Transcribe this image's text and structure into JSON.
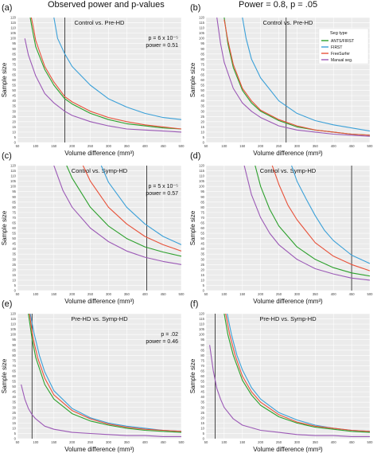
{
  "figure": {
    "col_titles": [
      "Observed power and p-values",
      "Power = 0.8, p = .05"
    ],
    "xlabel": "Volume difference (mm³)",
    "ylabel": "Sample size",
    "xticks": [
      50,
      100,
      150,
      200,
      250,
      300,
      350,
      400,
      450,
      500
    ],
    "yticks": [
      0,
      5,
      10,
      15,
      20,
      25,
      30,
      35,
      40,
      45,
      50,
      55,
      60,
      65,
      70,
      75,
      80,
      85,
      90,
      95,
      100,
      105,
      110,
      115,
      120
    ],
    "legend_title": "Seg type",
    "colors": {
      "ANTS/FIRST": "#2ca02c",
      "FIRST": "#3ba0d8",
      "FreeSurfer": "#e8523a",
      "Manual seg.": "#9b59b6",
      "panel_bg": "#ebebeb",
      "grid": "#ffffff",
      "vline": "#333333"
    }
  },
  "chart_data": [
    {
      "type": "line",
      "panel_label": "(a)",
      "title": "Control vs. Pre-HD",
      "annotation": [
        "p = 6 x 10⁻⁵",
        "power = 0.51"
      ],
      "xlim": [
        50,
        500
      ],
      "ylim": [
        0,
        120
      ],
      "vline_x": 180,
      "legend": false,
      "series": [
        {
          "name": "ANTS/FIRST",
          "x": [
            85,
            90,
            100,
            125,
            150,
            180,
            200,
            250,
            300,
            350,
            400,
            450,
            500
          ],
          "y": [
            120,
            110,
            92,
            70,
            55,
            42,
            37,
            28,
            22,
            18,
            16,
            14,
            13
          ]
        },
        {
          "name": "FIRST",
          "x": [
            150,
            160,
            180,
            200,
            250,
            300,
            350,
            400,
            450,
            500
          ],
          "y": [
            120,
            100,
            85,
            73,
            55,
            42,
            34,
            28,
            24,
            22
          ]
        },
        {
          "name": "FreeSurfer",
          "x": [
            88,
            95,
            100,
            125,
            150,
            180,
            200,
            250,
            300,
            350,
            400,
            450,
            500
          ],
          "y": [
            120,
            108,
            98,
            73,
            58,
            44,
            39,
            30,
            24,
            20,
            17,
            15,
            13
          ]
        },
        {
          "name": "Manual seg.",
          "x": [
            70,
            80,
            100,
            125,
            150,
            180,
            200,
            250,
            300,
            350,
            400,
            450,
            500
          ],
          "y": [
            100,
            84,
            64,
            47,
            38,
            30,
            26,
            20,
            16,
            13,
            12,
            11,
            10
          ]
        }
      ]
    },
    {
      "type": "line",
      "panel_label": "(b)",
      "title": "Control vs. Pre-HD",
      "annotation": [],
      "xlim": [
        50,
        500
      ],
      "ylim": [
        0,
        120
      ],
      "vline_x": 270,
      "legend": true,
      "series": [
        {
          "name": "ANTS/FIRST",
          "x": [
            100,
            110,
            125,
            150,
            175,
            200,
            250,
            300,
            350,
            400,
            450,
            500
          ],
          "y": [
            120,
            95,
            72,
            50,
            38,
            30,
            21,
            15,
            12,
            10,
            8,
            7
          ]
        },
        {
          "name": "FIRST",
          "x": [
            150,
            160,
            175,
            200,
            250,
            300,
            350,
            400,
            450,
            500
          ],
          "y": [
            120,
            100,
            80,
            62,
            40,
            28,
            21,
            17,
            14,
            11
          ]
        },
        {
          "name": "FreeSurfer",
          "x": [
            100,
            110,
            125,
            150,
            175,
            200,
            250,
            300,
            350,
            400,
            450,
            500
          ],
          "y": [
            118,
            98,
            75,
            52,
            40,
            31,
            22,
            16,
            12,
            10,
            8,
            7
          ]
        },
        {
          "name": "Manual seg.",
          "x": [
            80,
            90,
            100,
            125,
            150,
            175,
            200,
            250,
            300,
            350,
            400,
            450,
            500
          ],
          "y": [
            120,
            95,
            77,
            52,
            38,
            30,
            24,
            16,
            12,
            10,
            8,
            7,
            6
          ]
        }
      ]
    },
    {
      "type": "line",
      "panel_label": "(c)",
      "title": "Control vs. Symp-HD",
      "annotation": [
        "p = 5 x 10⁻⁵",
        "power = 0.57"
      ],
      "xlim": [
        50,
        500
      ],
      "ylim": [
        0,
        120
      ],
      "vline_x": 405,
      "legend": false,
      "series": [
        {
          "name": "ANTS/FIRST",
          "x": [
            185,
            200,
            250,
            300,
            350,
            400,
            450,
            500
          ],
          "y": [
            120,
            108,
            80,
            62,
            50,
            42,
            37,
            33
          ]
        },
        {
          "name": "FIRST",
          "x": [
            280,
            300,
            350,
            400,
            450,
            500
          ],
          "y": [
            120,
            104,
            80,
            64,
            52,
            44
          ]
        },
        {
          "name": "FreeSurfer",
          "x": [
            230,
            250,
            300,
            350,
            400,
            450,
            500
          ],
          "y": [
            120,
            105,
            80,
            64,
            52,
            44,
            38
          ]
        },
        {
          "name": "Manual seg.",
          "x": [
            150,
            175,
            200,
            250,
            300,
            350,
            400,
            450,
            500
          ],
          "y": [
            120,
            96,
            80,
            60,
            47,
            38,
            32,
            28,
            25
          ]
        }
      ]
    },
    {
      "type": "line",
      "panel_label": "(d)",
      "title": "Control vs. Symp-HD",
      "annotation": [],
      "xlim": [
        50,
        500
      ],
      "ylim": [
        0,
        120
      ],
      "vline_x": 450,
      "legend": false,
      "series": [
        {
          "name": "ANTS/FIRST",
          "x": [
            185,
            200,
            225,
            250,
            300,
            350,
            400,
            450,
            500
          ],
          "y": [
            120,
            100,
            78,
            62,
            42,
            30,
            22,
            17,
            14
          ]
        },
        {
          "name": "FIRST",
          "x": [
            285,
            300,
            325,
            350,
            375,
            400,
            450,
            500
          ],
          "y": [
            120,
            105,
            88,
            72,
            58,
            48,
            34,
            26
          ]
        },
        {
          "name": "FreeSurfer",
          "x": [
            232,
            250,
            275,
            300,
            350,
            400,
            450,
            500
          ],
          "y": [
            120,
            102,
            82,
            68,
            46,
            33,
            25,
            19
          ]
        },
        {
          "name": "Manual seg.",
          "x": [
            155,
            175,
            200,
            225,
            250,
            300,
            350,
            400,
            450,
            500
          ],
          "y": [
            120,
            92,
            70,
            55,
            44,
            30,
            21,
            16,
            12,
            10
          ]
        }
      ]
    },
    {
      "type": "line",
      "panel_label": "(e)",
      "title": "Pre-HD vs. Symp-HD",
      "annotation": [
        "p = .02",
        "power = 0.46"
      ],
      "xlim": [
        50,
        500
      ],
      "ylim": [
        0,
        120
      ],
      "vline_x": 90,
      "legend": false,
      "series": [
        {
          "name": "ANTS/FIRST",
          "x": [
            80,
            90,
            100,
            125,
            150,
            200,
            250,
            300,
            350,
            400,
            450,
            500
          ],
          "y": [
            120,
            96,
            78,
            52,
            38,
            24,
            17,
            13,
            10,
            8,
            7,
            6
          ]
        },
        {
          "name": "FIRST",
          "x": [
            85,
            95,
            110,
            125,
            150,
            200,
            250,
            300,
            350,
            400,
            450,
            500
          ],
          "y": [
            120,
            102,
            80,
            64,
            46,
            29,
            20,
            15,
            12,
            10,
            8,
            7
          ]
        },
        {
          "name": "FreeSurfer",
          "x": [
            83,
            92,
            105,
            125,
            150,
            200,
            250,
            300,
            350,
            400,
            450,
            500
          ],
          "y": [
            120,
            98,
            78,
            58,
            42,
            27,
            19,
            14,
            11,
            9,
            8,
            7
          ]
        },
        {
          "name": "Manual seg.",
          "x": [
            60,
            70,
            80,
            90,
            100,
            125,
            150,
            200,
            250,
            300,
            350,
            400,
            450,
            500
          ],
          "y": [
            52,
            38,
            29,
            23,
            19,
            12,
            9,
            6,
            5,
            4,
            3,
            3,
            2,
            2
          ]
        }
      ]
    },
    {
      "type": "line",
      "panel_label": "(f)",
      "title": "Pre-HD vs. Symp-HD",
      "annotation": [],
      "xlim": [
        50,
        500
      ],
      "ylim": [
        0,
        120
      ],
      "vline_x": 75,
      "legend": false,
      "series": [
        {
          "name": "ANTS/FIRST",
          "x": [
            100,
            110,
            125,
            150,
            175,
            200,
            250,
            300,
            350,
            400,
            450,
            500
          ],
          "y": [
            120,
            100,
            80,
            56,
            42,
            32,
            21,
            15,
            11,
            9,
            7,
            6
          ]
        },
        {
          "name": "FIRST",
          "x": [
            108,
            120,
            135,
            150,
            175,
            200,
            250,
            300,
            350,
            400,
            450,
            500
          ],
          "y": [
            120,
            100,
            80,
            66,
            49,
            38,
            25,
            18,
            13,
            10,
            8,
            7
          ]
        },
        {
          "name": "FreeSurfer",
          "x": [
            104,
            115,
            130,
            150,
            175,
            200,
            250,
            300,
            350,
            400,
            450,
            500
          ],
          "y": [
            120,
            100,
            80,
            60,
            45,
            35,
            23,
            16,
            12,
            10,
            8,
            7
          ]
        },
        {
          "name": "Manual seg.",
          "x": [
            60,
            70,
            80,
            90,
            100,
            125,
            150,
            200,
            250,
            300,
            350,
            400,
            450,
            500
          ],
          "y": [
            90,
            65,
            48,
            38,
            30,
            19,
            13,
            8,
            6,
            4,
            3,
            3,
            2,
            2
          ]
        }
      ]
    }
  ]
}
